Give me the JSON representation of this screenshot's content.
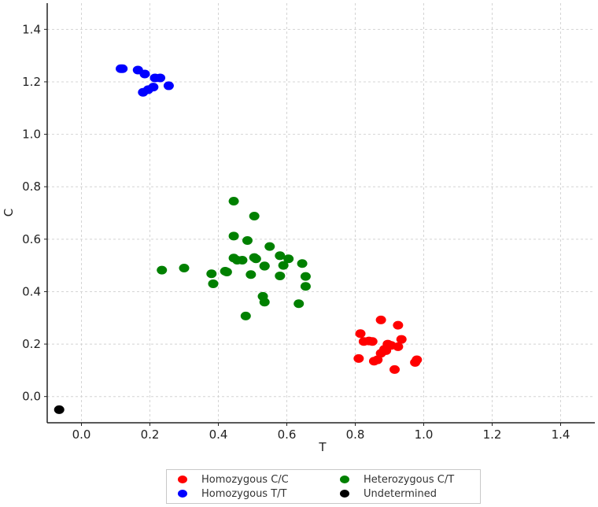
{
  "chart_data": {
    "type": "scatter",
    "title": "",
    "xlabel": "T",
    "ylabel": "C",
    "xlim": [
      -0.1,
      1.5
    ],
    "ylim": [
      -0.1,
      1.5
    ],
    "grid": true,
    "legend_position": "bottom-center",
    "x_ticks": [
      0.0,
      0.2,
      0.4,
      0.6,
      0.8,
      1.0,
      1.2,
      1.4
    ],
    "y_ticks": [
      0.0,
      0.2,
      0.4,
      0.6,
      0.8,
      1.0,
      1.2,
      1.4
    ],
    "x_tick_labels": [
      "0.0",
      "0.2",
      "0.4",
      "0.6",
      "0.8",
      "1.0",
      "1.2",
      "1.4"
    ],
    "y_tick_labels": [
      "0.0",
      "0.2",
      "0.4",
      "0.6",
      "0.8",
      "1.0",
      "1.2",
      "1.4"
    ],
    "series": [
      {
        "name": "Homozygous C/C",
        "color": "#ff0000",
        "x": [
          0.875,
          0.925,
          0.815,
          0.825,
          0.85,
          0.84,
          0.895,
          0.935,
          0.905,
          0.925,
          0.885,
          0.875,
          0.89,
          0.81,
          0.865,
          0.855,
          0.915,
          0.98,
          0.975
        ],
        "y": [
          0.292,
          0.272,
          0.24,
          0.21,
          0.21,
          0.212,
          0.2,
          0.218,
          0.195,
          0.19,
          0.18,
          0.165,
          0.175,
          0.145,
          0.14,
          0.135,
          0.103,
          0.14,
          0.13
        ]
      },
      {
        "name": "Homozygous T/T",
        "color": "#0000ff",
        "x": [
          0.12,
          0.115,
          0.165,
          0.185,
          0.215,
          0.23,
          0.255,
          0.21,
          0.195,
          0.18
        ],
        "y": [
          1.25,
          1.25,
          1.245,
          1.23,
          1.215,
          1.215,
          1.185,
          1.18,
          1.17,
          1.16
        ]
      },
      {
        "name": "Heterozygous C/T",
        "color": "#008000",
        "x": [
          0.445,
          0.505,
          0.445,
          0.485,
          0.55,
          0.58,
          0.605,
          0.445,
          0.455,
          0.47,
          0.505,
          0.51,
          0.535,
          0.535,
          0.59,
          0.645,
          0.655,
          0.58,
          0.655,
          0.235,
          0.3,
          0.38,
          0.385,
          0.42,
          0.425,
          0.495,
          0.53,
          0.535,
          0.635,
          0.48
        ],
        "y": [
          0.745,
          0.688,
          0.612,
          0.595,
          0.572,
          0.537,
          0.525,
          0.528,
          0.52,
          0.52,
          0.53,
          0.525,
          0.498,
          0.497,
          0.5,
          0.507,
          0.458,
          0.46,
          0.42,
          0.482,
          0.49,
          0.468,
          0.43,
          0.478,
          0.475,
          0.465,
          0.382,
          0.36,
          0.354,
          0.307
        ]
      },
      {
        "name": "Undetermined",
        "color": "#000000",
        "x": [
          -0.065
        ],
        "y": [
          -0.05
        ]
      }
    ]
  }
}
